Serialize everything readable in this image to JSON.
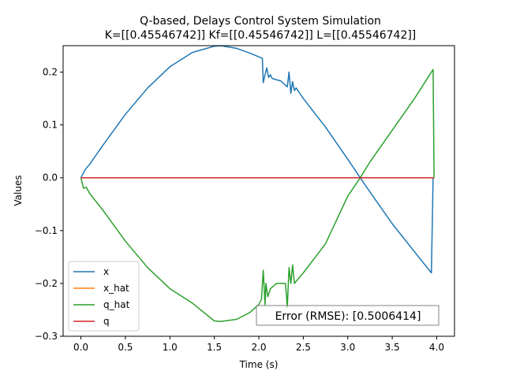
{
  "chart_data": {
    "type": "line",
    "title_line1": "Q-based, Delays Control System Simulation",
    "title_line2": "K=[[0.45546742]] Kf=[[0.45546742]] L=[[0.45546742]]",
    "xlabel": "Time (s)",
    "ylabel": "Values",
    "xlim": [
      -0.2,
      4.2
    ],
    "ylim": [
      -0.3,
      0.25
    ],
    "xticks": [
      0.0,
      0.5,
      1.0,
      1.5,
      2.0,
      2.5,
      3.0,
      3.5,
      4.0
    ],
    "xtick_labels": [
      "0.0",
      "0.5",
      "1.0",
      "1.5",
      "2.0",
      "2.5",
      "3.0",
      "3.5",
      "4.0"
    ],
    "yticks": [
      -0.3,
      -0.2,
      -0.1,
      0.0,
      0.1,
      0.2
    ],
    "ytick_labels": [
      "−0.3",
      "−0.2",
      "−0.1",
      "0.0",
      "0.1",
      "0.2"
    ],
    "grid": false,
    "legend_position": "lower-left",
    "annotation": "Error (RMSE): [0.5006414]",
    "series": [
      {
        "name": "x",
        "color": "#1f77b4",
        "points": [
          [
            0.0,
            0.0
          ],
          [
            0.05,
            0.016
          ],
          [
            0.1,
            0.026
          ],
          [
            0.25,
            0.062
          ],
          [
            0.5,
            0.12
          ],
          [
            0.75,
            0.17
          ],
          [
            1.0,
            0.21
          ],
          [
            1.25,
            0.237
          ],
          [
            1.5,
            0.249
          ],
          [
            1.57,
            0.25
          ],
          [
            1.75,
            0.245
          ],
          [
            1.9,
            0.236
          ],
          [
            2.04,
            0.226
          ],
          [
            2.05,
            0.18
          ],
          [
            2.07,
            0.195
          ],
          [
            2.09,
            0.208
          ],
          [
            2.11,
            0.19
          ],
          [
            2.13,
            0.195
          ],
          [
            2.15,
            0.188
          ],
          [
            2.25,
            0.183
          ],
          [
            2.32,
            0.172
          ],
          [
            2.34,
            0.2
          ],
          [
            2.36,
            0.16
          ],
          [
            2.38,
            0.182
          ],
          [
            2.4,
            0.165
          ],
          [
            2.42,
            0.17
          ],
          [
            2.5,
            0.15
          ],
          [
            2.75,
            0.096
          ],
          [
            3.0,
            0.035
          ],
          [
            3.14,
            0.0
          ],
          [
            3.25,
            -0.027
          ],
          [
            3.5,
            -0.087
          ],
          [
            3.75,
            -0.14
          ],
          [
            3.94,
            -0.18
          ],
          [
            3.96,
            0.0
          ]
        ]
      },
      {
        "name": "x_hat",
        "color": "#ff7f0e",
        "points": [
          [
            0.0,
            0.0
          ],
          [
            3.97,
            0.0
          ]
        ]
      },
      {
        "name": "q_hat",
        "color": "#2ca02c",
        "points": [
          [
            0.0,
            0.0
          ],
          [
            0.03,
            -0.02
          ],
          [
            0.06,
            -0.018
          ],
          [
            0.1,
            -0.03
          ],
          [
            0.25,
            -0.062
          ],
          [
            0.5,
            -0.12
          ],
          [
            0.75,
            -0.17
          ],
          [
            1.0,
            -0.21
          ],
          [
            1.25,
            -0.237
          ],
          [
            1.5,
            -0.271
          ],
          [
            1.57,
            -0.272
          ],
          [
            1.75,
            -0.268
          ],
          [
            1.9,
            -0.255
          ],
          [
            2.0,
            -0.24
          ],
          [
            2.03,
            -0.23
          ],
          [
            2.05,
            -0.175
          ],
          [
            2.07,
            -0.24
          ],
          [
            2.08,
            -0.2
          ],
          [
            2.1,
            -0.225
          ],
          [
            2.13,
            -0.21
          ],
          [
            2.2,
            -0.2
          ],
          [
            2.3,
            -0.2
          ],
          [
            2.32,
            -0.245
          ],
          [
            2.34,
            -0.17
          ],
          [
            2.36,
            -0.2
          ],
          [
            2.38,
            -0.165
          ],
          [
            2.4,
            -0.2
          ],
          [
            2.5,
            -0.18
          ],
          [
            2.75,
            -0.125
          ],
          [
            3.0,
            -0.035
          ],
          [
            3.14,
            0.0
          ],
          [
            3.25,
            0.03
          ],
          [
            3.5,
            0.09
          ],
          [
            3.75,
            0.15
          ],
          [
            3.96,
            0.205
          ],
          [
            3.97,
            0.0
          ]
        ]
      },
      {
        "name": "q",
        "color": "#d62728",
        "points": [
          [
            0.0,
            0.0
          ],
          [
            3.97,
            0.0
          ]
        ]
      }
    ]
  }
}
